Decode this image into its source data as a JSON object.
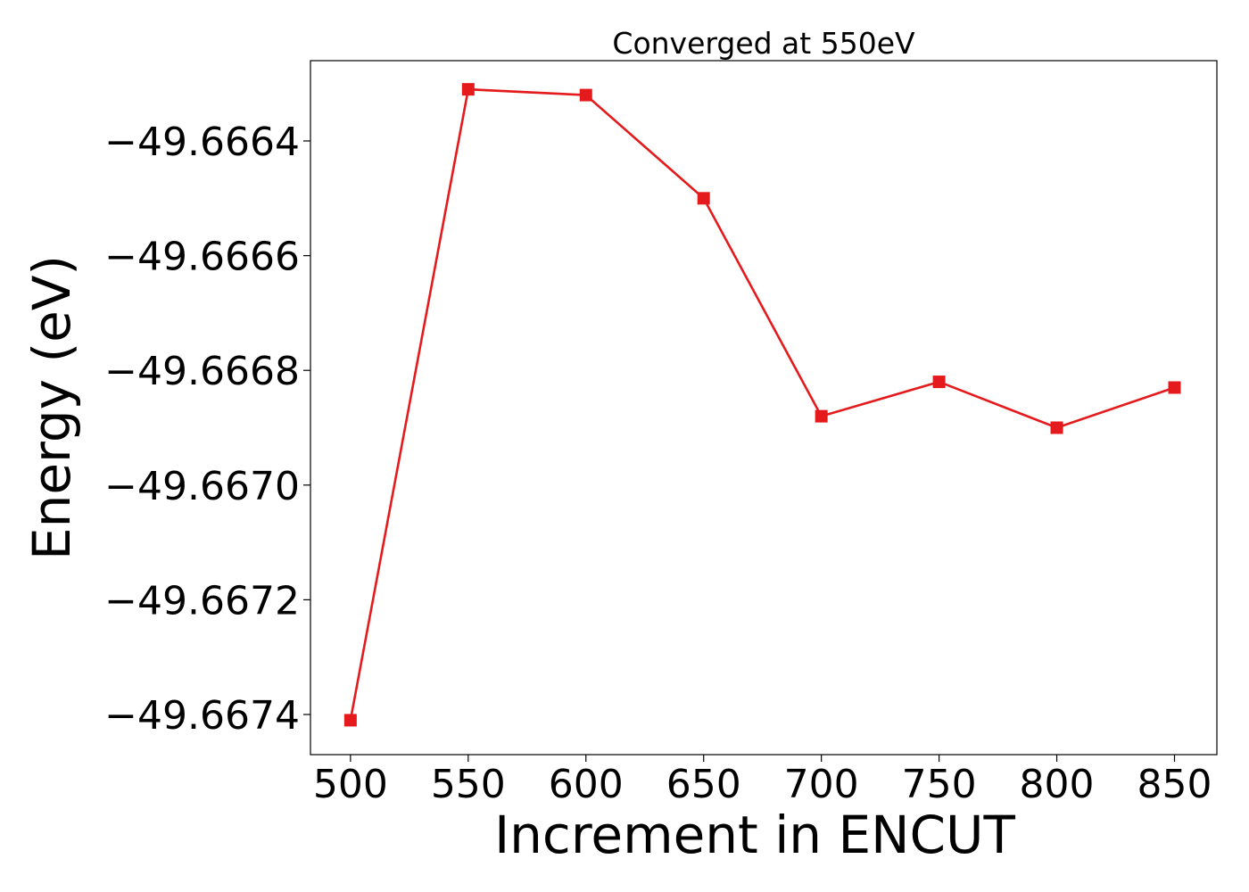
{
  "chart_data": {
    "type": "line",
    "title": "Converged at 550eV",
    "xlabel": "Increment in ENCUT",
    "ylabel": "Energy (eV)",
    "x": [
      500,
      550,
      600,
      650,
      700,
      750,
      800,
      850
    ],
    "series": [
      {
        "values": [
          -49.66741,
          -49.66631,
          -49.66632,
          -49.6665,
          -49.66688,
          -49.66682,
          -49.6669,
          -49.66683
        ],
        "color": "#e41a1c",
        "marker": "square"
      }
    ],
    "xlim": [
      483,
      868
    ],
    "ylim": [
      -49.66747,
      -49.66626
    ],
    "xticks": [
      500,
      550,
      600,
      650,
      700,
      750,
      800,
      850
    ],
    "xtick_labels": [
      "500",
      "550",
      "600",
      "650",
      "700",
      "750",
      "800",
      "850"
    ],
    "yticks": [
      -49.6664,
      -49.6666,
      -49.6668,
      -49.667,
      -49.6672,
      -49.6674
    ],
    "ytick_labels": [
      "−49.6664",
      "−49.6666",
      "−49.6668",
      "−49.6670",
      "−49.6672",
      "−49.6674"
    ],
    "grid": false,
    "legend": "none"
  }
}
